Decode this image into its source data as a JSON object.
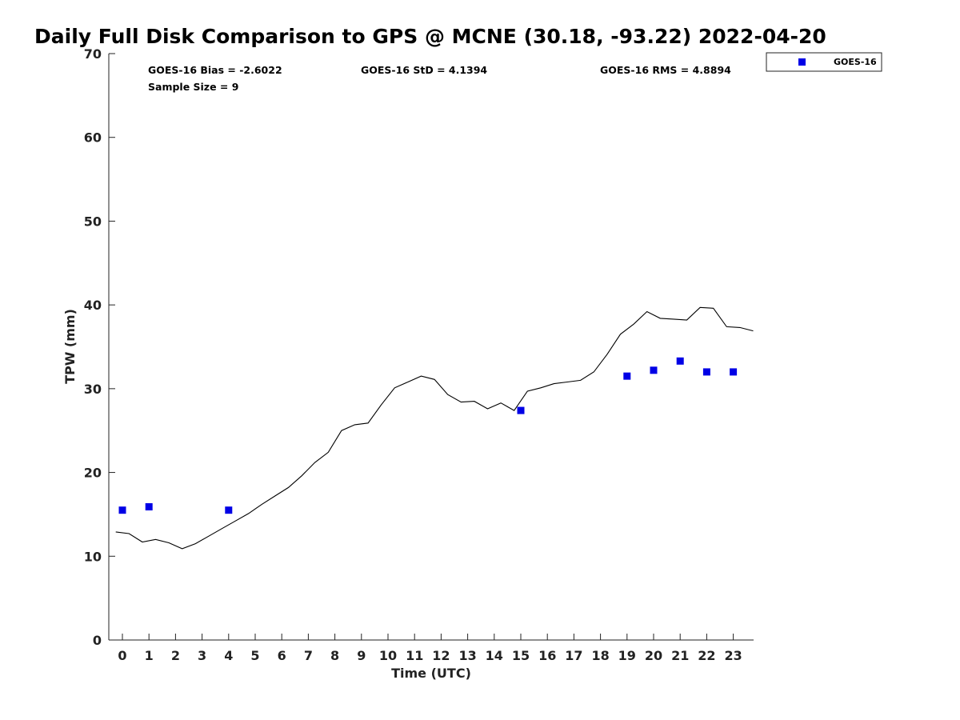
{
  "chart_data": {
    "type": "scatter",
    "title": "Daily Full Disk Comparison to GPS @ MCNE (30.18, -93.22) 2022-04-20",
    "xlabel": "Time (UTC)",
    "ylabel": "TPW (mm)",
    "xlim": [
      -0.5,
      23.8
    ],
    "ylim": [
      0,
      70
    ],
    "x_ticks": [
      0,
      1,
      2,
      3,
      4,
      5,
      6,
      7,
      8,
      9,
      10,
      11,
      12,
      13,
      14,
      15,
      16,
      17,
      18,
      19,
      20,
      21,
      22,
      23
    ],
    "y_ticks": [
      0,
      10,
      20,
      30,
      40,
      50,
      60,
      70
    ],
    "grid": false,
    "legend_position": "top-right",
    "stats": {
      "bias": "GOES-16 Bias = -2.6022",
      "std": "GOES-16 StD = 4.1394",
      "rms": "GOES-16 RMS = 4.8894",
      "sample": "Sample Size = 9"
    },
    "series": [
      {
        "name": "GOES-16",
        "kind": "scatter",
        "color": "#0000e6",
        "x": [
          0,
          1,
          4,
          15,
          19,
          20,
          21,
          22,
          23
        ],
        "y": [
          15.5,
          15.9,
          15.5,
          27.4,
          31.5,
          32.2,
          33.3,
          32.0,
          32.0
        ]
      },
      {
        "kind": "line",
        "color": "#000000",
        "x": [
          -0.25,
          0.25,
          0.75,
          1.25,
          1.75,
          2.25,
          2.75,
          3.25,
          3.75,
          4.25,
          4.75,
          5.25,
          5.75,
          6.25,
          6.75,
          7.25,
          7.75,
          8.25,
          8.75,
          9.25,
          9.75,
          10.25,
          10.75,
          11.25,
          11.75,
          12.25,
          12.75,
          13.25,
          13.75,
          14.25,
          14.75,
          15.25,
          15.75,
          16.25,
          16.75,
          17.25,
          17.75,
          18.25,
          18.75,
          19.25,
          19.75,
          20.25,
          20.75,
          21.25,
          21.75,
          22.25,
          22.75,
          23.25,
          23.75
        ],
        "y": [
          12.9,
          12.7,
          11.7,
          12.0,
          11.6,
          10.9,
          11.5,
          12.4,
          13.3,
          14.2,
          15.1,
          16.2,
          17.2,
          18.2,
          19.6,
          21.2,
          22.4,
          25.0,
          25.7,
          25.9,
          28.1,
          30.1,
          30.8,
          31.5,
          31.1,
          29.3,
          28.4,
          28.5,
          27.6,
          28.3,
          27.4,
          29.7,
          30.1,
          30.6,
          30.8,
          31.0,
          32.0,
          34.1,
          36.5,
          37.7,
          39.2,
          38.4,
          38.3,
          38.2,
          39.7,
          39.6,
          37.4,
          37.3,
          36.9
        ]
      }
    ]
  }
}
